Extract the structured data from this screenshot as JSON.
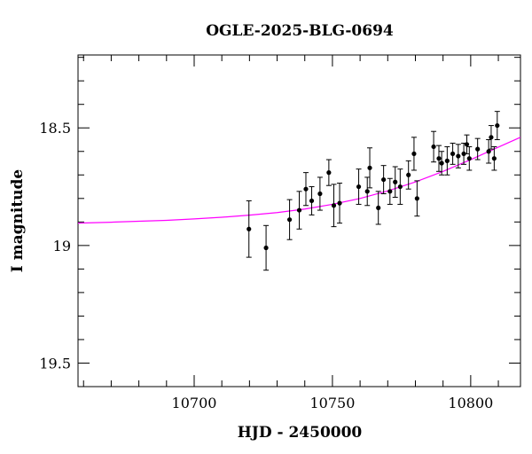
{
  "chart_data": {
    "type": "scatter",
    "title": "OGLE-2025-BLG-0694",
    "xlabel": "HJD - 2450000",
    "ylabel": "I magnitude",
    "xlim": [
      10658,
      10818
    ],
    "ylim": [
      19.6,
      18.19
    ],
    "y_inverted": true,
    "xticks_major": [
      10700,
      10750,
      10800
    ],
    "xticks_major_labels": [
      "10700",
      "10750",
      "10800"
    ],
    "yticks_major": [
      18.5,
      19,
      19.5
    ],
    "yticks_major_labels": [
      "18.5",
      "19",
      "19.5"
    ],
    "grid": false,
    "colors": {
      "model": "#ff00ff",
      "points": "#000000"
    },
    "series": [
      {
        "type": "scatter_errorbar",
        "points": [
          {
            "x": 10719.8,
            "y": 18.93,
            "err": 0.12
          },
          {
            "x": 10726.0,
            "y": 19.01,
            "err": 0.095
          },
          {
            "x": 10734.5,
            "y": 18.89,
            "err": 0.085
          },
          {
            "x": 10738.0,
            "y": 18.85,
            "err": 0.08
          },
          {
            "x": 10740.4,
            "y": 18.76,
            "err": 0.07
          },
          {
            "x": 10742.5,
            "y": 18.81,
            "err": 0.06
          },
          {
            "x": 10745.5,
            "y": 18.78,
            "err": 0.07
          },
          {
            "x": 10748.7,
            "y": 18.69,
            "err": 0.055
          },
          {
            "x": 10750.5,
            "y": 18.83,
            "err": 0.09
          },
          {
            "x": 10752.6,
            "y": 18.82,
            "err": 0.085
          },
          {
            "x": 10759.5,
            "y": 18.75,
            "err": 0.075
          },
          {
            "x": 10762.6,
            "y": 18.77,
            "err": 0.06
          },
          {
            "x": 10763.5,
            "y": 18.67,
            "err": 0.085
          },
          {
            "x": 10766.6,
            "y": 18.84,
            "err": 0.07
          },
          {
            "x": 10768.5,
            "y": 18.72,
            "err": 0.06
          },
          {
            "x": 10770.8,
            "y": 18.77,
            "err": 0.055
          },
          {
            "x": 10772.7,
            "y": 18.73,
            "err": 0.065
          },
          {
            "x": 10774.5,
            "y": 18.75,
            "err": 0.075
          },
          {
            "x": 10777.5,
            "y": 18.7,
            "err": 0.06
          },
          {
            "x": 10779.5,
            "y": 18.61,
            "err": 0.07
          },
          {
            "x": 10780.6,
            "y": 18.8,
            "err": 0.075
          },
          {
            "x": 10786.6,
            "y": 18.58,
            "err": 0.065
          },
          {
            "x": 10788.5,
            "y": 18.63,
            "err": 0.055
          },
          {
            "x": 10789.5,
            "y": 18.65,
            "err": 0.05
          },
          {
            "x": 10791.5,
            "y": 18.64,
            "err": 0.06
          },
          {
            "x": 10793.5,
            "y": 18.61,
            "err": 0.045
          },
          {
            "x": 10795.5,
            "y": 18.62,
            "err": 0.05
          },
          {
            "x": 10797.5,
            "y": 18.61,
            "err": 0.045
          },
          {
            "x": 10798.6,
            "y": 18.57,
            "err": 0.04
          },
          {
            "x": 10799.5,
            "y": 18.63,
            "err": 0.05
          },
          {
            "x": 10802.5,
            "y": 18.59,
            "err": 0.045
          },
          {
            "x": 10806.5,
            "y": 18.6,
            "err": 0.05
          },
          {
            "x": 10807.4,
            "y": 18.54,
            "err": 0.05
          },
          {
            "x": 10808.5,
            "y": 18.63,
            "err": 0.05
          },
          {
            "x": 10809.6,
            "y": 18.49,
            "err": 0.06
          }
        ]
      },
      {
        "type": "line",
        "x": [
          10658,
          10670,
          10680,
          10690,
          10700,
          10710,
          10720,
          10730,
          10740,
          10750,
          10760,
          10770,
          10780,
          10790,
          10800,
          10810,
          10818
        ],
        "y": [
          18.905,
          18.901,
          18.897,
          18.893,
          18.887,
          18.88,
          18.871,
          18.86,
          18.845,
          18.825,
          18.8,
          18.768,
          18.73,
          18.685,
          18.635,
          18.582,
          18.54
        ]
      }
    ]
  }
}
